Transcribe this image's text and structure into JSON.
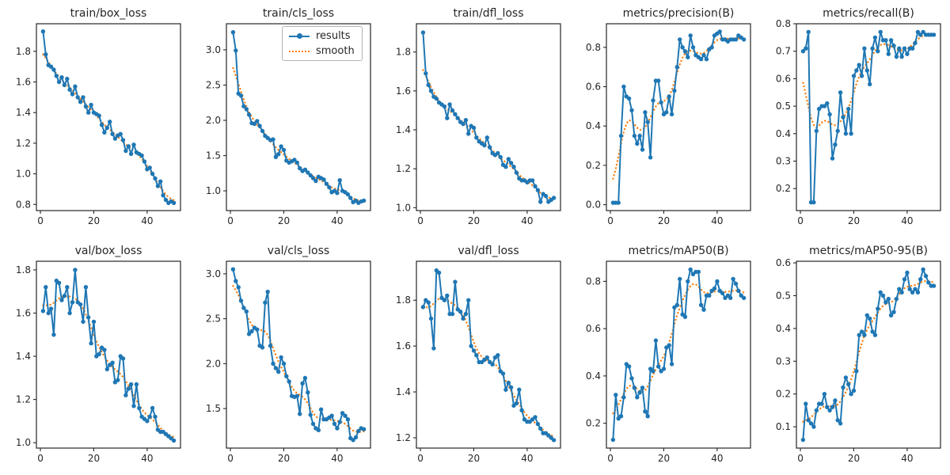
{
  "figure": {
    "background": "#ffffff",
    "rows": 2,
    "cols": 5
  },
  "colors": {
    "results": "#1f77b4",
    "smooth": "#ff7f0e",
    "axis": "#262626"
  },
  "legend": {
    "position": "upper-right of train/cls_loss subplot",
    "items": [
      {
        "label": "results",
        "style": "solid line with dot marker"
      },
      {
        "label": "smooth",
        "style": "dotted line"
      }
    ]
  },
  "chart_data": [
    {
      "type": "line",
      "title": "train/box_loss",
      "x_start": 1,
      "xticks": [
        0,
        20,
        40
      ],
      "xlim": [
        -1.5,
        52.5
      ],
      "yticks": [
        0.8,
        1.0,
        1.2,
        1.4,
        1.6,
        1.8
      ],
      "ylim": [
        0.76,
        1.98
      ],
      "series": [
        {
          "name": "results",
          "values": [
            1.93,
            1.78,
            1.71,
            1.7,
            1.68,
            1.64,
            1.6,
            1.63,
            1.58,
            1.62,
            1.55,
            1.52,
            1.57,
            1.5,
            1.47,
            1.5,
            1.44,
            1.4,
            1.45,
            1.4,
            1.39,
            1.38,
            1.32,
            1.27,
            1.3,
            1.34,
            1.26,
            1.23,
            1.25,
            1.26,
            1.22,
            1.15,
            1.18,
            1.13,
            1.19,
            1.14,
            1.13,
            1.12,
            1.08,
            1.03,
            1.04,
            1.0,
            0.97,
            0.92,
            0.95,
            0.86,
            0.83,
            0.81,
            0.82,
            0.81
          ]
        },
        {
          "name": "smooth",
          "style": "dotted",
          "derived_from": "results"
        }
      ]
    },
    {
      "type": "line",
      "title": "train/cls_loss",
      "x_start": 1,
      "xticks": [
        0,
        20,
        40
      ],
      "xlim": [
        -1.5,
        52.5
      ],
      "yticks": [
        1.0,
        1.5,
        2.0,
        2.5,
        3.0
      ],
      "ylim": [
        0.72,
        3.37
      ],
      "series": [
        {
          "name": "results",
          "values": [
            3.25,
            2.99,
            2.38,
            2.35,
            2.2,
            2.16,
            2.08,
            1.96,
            1.95,
            1.99,
            1.92,
            1.85,
            1.78,
            1.75,
            1.72,
            1.73,
            1.48,
            1.52,
            1.63,
            1.58,
            1.43,
            1.4,
            1.42,
            1.44,
            1.4,
            1.32,
            1.28,
            1.3,
            1.26,
            1.22,
            1.18,
            1.14,
            1.2,
            1.18,
            1.16,
            1.1,
            1.05,
            0.98,
            1.0,
            0.97,
            1.15,
            1.0,
            0.98,
            0.95,
            0.9,
            0.84,
            0.86,
            0.83,
            0.85,
            0.86
          ]
        },
        {
          "name": "smooth",
          "style": "dotted",
          "derived_from": "results"
        }
      ]
    },
    {
      "type": "line",
      "title": "train/dfl_loss",
      "x_start": 1,
      "xticks": [
        0,
        20,
        40
      ],
      "xlim": [
        -1.5,
        52.5
      ],
      "yticks": [
        1.0,
        1.2,
        1.4,
        1.6,
        1.8
      ],
      "ylim": [
        0.985,
        1.945
      ],
      "series": [
        {
          "name": "results",
          "values": [
            1.9,
            1.69,
            1.63,
            1.6,
            1.57,
            1.56,
            1.54,
            1.53,
            1.52,
            1.46,
            1.53,
            1.5,
            1.48,
            1.46,
            1.44,
            1.43,
            1.45,
            1.38,
            1.42,
            1.41,
            1.36,
            1.34,
            1.33,
            1.32,
            1.36,
            1.31,
            1.28,
            1.27,
            1.28,
            1.26,
            1.22,
            1.21,
            1.25,
            1.23,
            1.21,
            1.18,
            1.15,
            1.14,
            1.14,
            1.13,
            1.14,
            1.14,
            1.11,
            1.09,
            1.03,
            1.07,
            1.06,
            1.03,
            1.04,
            1.05
          ]
        },
        {
          "name": "smooth",
          "style": "dotted",
          "derived_from": "results"
        }
      ]
    },
    {
      "type": "line",
      "title": "metrics/precision(B)",
      "x_start": 1,
      "xticks": [
        0,
        20,
        40
      ],
      "xlim": [
        -1.5,
        52.5
      ],
      "yticks": [
        0.0,
        0.2,
        0.4,
        0.6,
        0.8
      ],
      "ylim": [
        -0.03,
        0.92
      ],
      "series": [
        {
          "name": "results",
          "values": [
            0.01,
            0.01,
            0.01,
            0.35,
            0.6,
            0.55,
            0.54,
            0.48,
            0.35,
            0.31,
            0.35,
            0.28,
            0.47,
            0.42,
            0.24,
            0.53,
            0.63,
            0.63,
            0.52,
            0.46,
            0.47,
            0.55,
            0.46,
            0.58,
            0.7,
            0.84,
            0.8,
            0.78,
            0.75,
            0.86,
            0.8,
            0.76,
            0.75,
            0.74,
            0.76,
            0.74,
            0.79,
            0.8,
            0.86,
            0.87,
            0.88,
            0.84,
            0.84,
            0.83,
            0.84,
            0.84,
            0.84,
            0.86,
            0.85,
            0.84
          ]
        },
        {
          "name": "smooth",
          "style": "dotted",
          "derived_from": "results"
        }
      ]
    },
    {
      "type": "line",
      "title": "metrics/recall(B)",
      "x_start": 1,
      "xticks": [
        0,
        20,
        40
      ],
      "xlim": [
        -1.5,
        52.5
      ],
      "yticks": [
        0.2,
        0.3,
        0.4,
        0.5,
        0.6,
        0.7,
        0.8
      ],
      "ylim": [
        0.12,
        0.8
      ],
      "series": [
        {
          "name": "results",
          "values": [
            0.7,
            0.71,
            0.77,
            0.15,
            0.15,
            0.41,
            0.49,
            0.5,
            0.5,
            0.51,
            0.47,
            0.31,
            0.36,
            0.41,
            0.55,
            0.46,
            0.4,
            0.49,
            0.4,
            0.61,
            0.63,
            0.65,
            0.61,
            0.71,
            0.63,
            0.58,
            0.71,
            0.75,
            0.7,
            0.77,
            0.74,
            0.74,
            0.69,
            0.74,
            0.72,
            0.68,
            0.71,
            0.68,
            0.71,
            0.69,
            0.71,
            0.71,
            0.73,
            0.77,
            0.76,
            0.77,
            0.76,
            0.76,
            0.76,
            0.76
          ]
        },
        {
          "name": "smooth",
          "style": "dotted",
          "derived_from": "results"
        }
      ]
    },
    {
      "type": "line",
      "title": "val/box_loss",
      "x_start": 1,
      "xticks": [
        0,
        20,
        40
      ],
      "xlim": [
        -1.5,
        52.5
      ],
      "yticks": [
        1.0,
        1.2,
        1.4,
        1.6,
        1.8
      ],
      "ylim": [
        0.975,
        1.84
      ],
      "series": [
        {
          "name": "results",
          "values": [
            1.61,
            1.72,
            1.6,
            1.62,
            1.5,
            1.75,
            1.74,
            1.66,
            1.68,
            1.72,
            1.6,
            1.65,
            1.8,
            1.65,
            1.64,
            1.56,
            1.72,
            1.58,
            1.46,
            1.56,
            1.4,
            1.41,
            1.44,
            1.43,
            1.34,
            1.36,
            1.37,
            1.28,
            1.29,
            1.4,
            1.39,
            1.22,
            1.25,
            1.27,
            1.17,
            1.27,
            1.16,
            1.12,
            1.11,
            1.1,
            1.12,
            1.16,
            1.12,
            1.06,
            1.05,
            1.05,
            1.04,
            1.03,
            1.02,
            1.01
          ]
        },
        {
          "name": "smooth",
          "style": "dotted",
          "derived_from": "results"
        }
      ]
    },
    {
      "type": "line",
      "title": "val/cls_loss",
      "x_start": 1,
      "xticks": [
        0,
        20,
        40
      ],
      "xlim": [
        -1.5,
        52.5
      ],
      "yticks": [
        1.5,
        2.0,
        2.5,
        3.0
      ],
      "ylim": [
        1.06,
        3.14
      ],
      "series": [
        {
          "name": "results",
          "values": [
            3.05,
            2.92,
            2.85,
            2.7,
            2.62,
            2.58,
            2.33,
            2.36,
            2.4,
            2.38,
            2.2,
            2.18,
            2.68,
            2.8,
            2.2,
            2.0,
            1.95,
            1.91,
            2.07,
            2.0,
            1.86,
            1.8,
            1.64,
            1.63,
            1.64,
            1.44,
            1.78,
            1.84,
            1.68,
            1.43,
            1.33,
            1.28,
            1.26,
            1.49,
            1.38,
            1.38,
            1.4,
            1.42,
            1.33,
            1.28,
            1.35,
            1.45,
            1.42,
            1.38,
            1.17,
            1.15,
            1.18,
            1.25,
            1.28,
            1.27
          ]
        },
        {
          "name": "smooth",
          "style": "dotted",
          "derived_from": "results"
        }
      ]
    },
    {
      "type": "line",
      "title": "val/dfl_loss",
      "x_start": 1,
      "xticks": [
        0,
        20,
        40
      ],
      "xlim": [
        -1.5,
        52.5
      ],
      "yticks": [
        1.2,
        1.4,
        1.6,
        1.8
      ],
      "ylim": [
        1.155,
        1.97
      ],
      "series": [
        {
          "name": "results",
          "values": [
            1.77,
            1.8,
            1.79,
            1.72,
            1.59,
            1.93,
            1.92,
            1.81,
            1.8,
            1.82,
            1.74,
            1.74,
            1.88,
            1.76,
            1.75,
            1.72,
            1.74,
            1.8,
            1.6,
            1.58,
            1.56,
            1.53,
            1.53,
            1.54,
            1.55,
            1.53,
            1.52,
            1.55,
            1.56,
            1.49,
            1.48,
            1.41,
            1.44,
            1.42,
            1.34,
            1.35,
            1.41,
            1.32,
            1.28,
            1.27,
            1.27,
            1.28,
            1.29,
            1.26,
            1.24,
            1.22,
            1.22,
            1.21,
            1.2,
            1.19
          ]
        },
        {
          "name": "smooth",
          "style": "dotted",
          "derived_from": "results"
        }
      ]
    },
    {
      "type": "line",
      "title": "metrics/mAP50(B)",
      "x_start": 1,
      "xticks": [
        0,
        20,
        40
      ],
      "xlim": [
        -1.5,
        52.5
      ],
      "yticks": [
        0.2,
        0.4,
        0.6,
        0.8
      ],
      "ylim": [
        0.095,
        0.885
      ],
      "series": [
        {
          "name": "results",
          "values": [
            0.13,
            0.32,
            0.22,
            0.23,
            0.31,
            0.45,
            0.44,
            0.39,
            0.35,
            0.31,
            0.33,
            0.35,
            0.25,
            0.23,
            0.43,
            0.42,
            0.55,
            0.44,
            0.42,
            0.43,
            0.52,
            0.53,
            0.45,
            0.69,
            0.7,
            0.81,
            0.66,
            0.65,
            0.8,
            0.85,
            0.83,
            0.84,
            0.84,
            0.7,
            0.68,
            0.74,
            0.74,
            0.76,
            0.77,
            0.8,
            0.76,
            0.75,
            0.73,
            0.74,
            0.73,
            0.81,
            0.79,
            0.76,
            0.74,
            0.73
          ]
        },
        {
          "name": "smooth",
          "style": "dotted",
          "derived_from": "results"
        }
      ]
    },
    {
      "type": "line",
      "title": "metrics/mAP50-95(B)",
      "x_start": 1,
      "xticks": [
        0,
        20,
        40
      ],
      "xlim": [
        -1.5,
        52.5
      ],
      "yticks": [
        0.1,
        0.2,
        0.3,
        0.4,
        0.5,
        0.6
      ],
      "ylim": [
        0.035,
        0.605
      ],
      "series": [
        {
          "name": "results",
          "values": [
            0.06,
            0.17,
            0.12,
            0.11,
            0.1,
            0.15,
            0.17,
            0.17,
            0.2,
            0.16,
            0.15,
            0.16,
            0.18,
            0.12,
            0.11,
            0.22,
            0.25,
            0.23,
            0.2,
            0.21,
            0.27,
            0.38,
            0.39,
            0.38,
            0.44,
            0.43,
            0.39,
            0.38,
            0.46,
            0.51,
            0.5,
            0.48,
            0.49,
            0.44,
            0.45,
            0.49,
            0.52,
            0.51,
            0.55,
            0.57,
            0.52,
            0.51,
            0.52,
            0.51,
            0.55,
            0.58,
            0.56,
            0.54,
            0.53,
            0.53
          ]
        },
        {
          "name": "smooth",
          "style": "dotted",
          "derived_from": "results"
        }
      ]
    }
  ]
}
